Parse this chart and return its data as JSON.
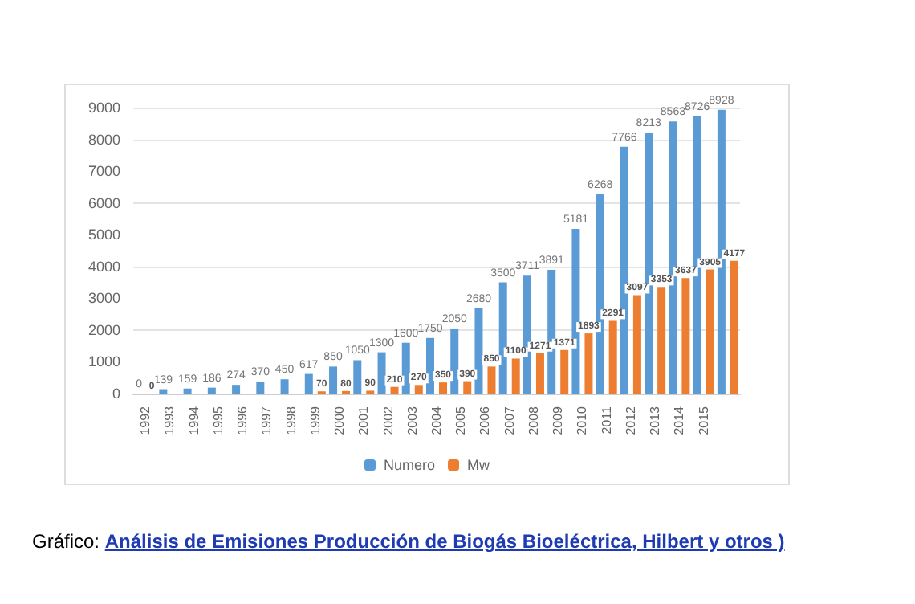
{
  "chart_data": {
    "type": "bar",
    "categories": [
      "1992",
      "1993",
      "1994",
      "1995",
      "1996",
      "1997",
      "1998",
      "1999",
      "2000",
      "2001",
      "2002",
      "2003",
      "2004",
      "2005",
      "2006",
      "2007",
      "2008",
      "2009",
      "2010",
      "2011",
      "2012",
      "2013",
      "2014",
      "2015",
      null
    ],
    "series": [
      {
        "name": "Numero",
        "color": "#5b9bd5",
        "values": [
          0,
          139,
          159,
          186,
          274,
          370,
          450,
          617,
          850,
          1050,
          1300,
          1600,
          1750,
          2050,
          2680,
          3500,
          3711,
          3891,
          5181,
          6268,
          7766,
          8213,
          8563,
          8726,
          8928
        ],
        "value_labels": [
          "0",
          "139",
          "159",
          "186",
          "274",
          "370",
          "450",
          "617",
          "850",
          "1050",
          "1300",
          "1600",
          "1750",
          "2050",
          "2680",
          "3500",
          "3711",
          "3891",
          "5181",
          "6268",
          "7766",
          "8213",
          "8563",
          "8726",
          "8928"
        ]
      },
      {
        "name": "Mw",
        "color": "#ed7d31",
        "values": [
          0,
          null,
          null,
          null,
          null,
          null,
          null,
          70,
          80,
          90,
          210,
          270,
          350,
          390,
          850,
          1100,
          1271,
          1371,
          1893,
          2291,
          3097,
          3353,
          3637,
          3905,
          4177
        ],
        "value_labels": [
          "0",
          null,
          null,
          null,
          null,
          null,
          null,
          "70",
          "80",
          "90",
          "210",
          "270",
          "350",
          "390",
          "850",
          "1100",
          "1271",
          "1371",
          "1893",
          "2291",
          "3097",
          "3353",
          "3637",
          "3905",
          "4177"
        ]
      }
    ],
    "ylim": [
      0,
      9000
    ],
    "yticks": [
      0,
      1000,
      2000,
      3000,
      4000,
      5000,
      6000,
      7000,
      8000,
      9000
    ],
    "grid": "y",
    "legend": "bottom",
    "annotations": [
      "Gráfico: Análisis de Emisiones Producción de Biogás Bioeléctrica, Hilbert y otros )"
    ]
  }
}
